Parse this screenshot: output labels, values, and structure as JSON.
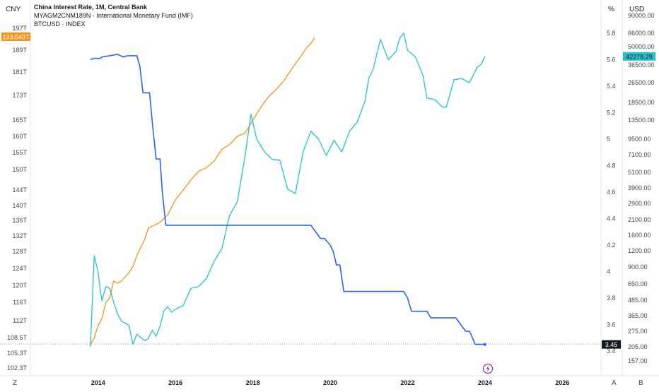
{
  "colors": {
    "interest_rate": "#2962ff",
    "money_supply": "#f7931a",
    "btc": "#22c3cf",
    "text": "#131722",
    "axis_text": "#434651",
    "divider": "#e0e3eb",
    "price_label_dark": "#131722",
    "lightning": "#9c27b0"
  },
  "header": {
    "currency_left": "CNY",
    "unit_mid": "%",
    "currency_right": "USD",
    "legend": [
      {
        "text": "China Interest Rate, 1M, Central Bank",
        "bold": true
      },
      {
        "text": "MYAGM2CNM189N · International Monetary Fund (IMF)",
        "bold": false
      },
      {
        "text": "BTCUSD · INDEX",
        "bold": false
      }
    ]
  },
  "footer": {
    "left_button": "Z",
    "a_button": "A",
    "b_button": "B"
  },
  "chart_data": {
    "type": "line",
    "x_range": [
      2012.25,
      2027.0
    ],
    "x_ticks": [
      "2014",
      "2016",
      "2018",
      "2020",
      "2022",
      "2024",
      "2026"
    ],
    "left_axis": {
      "unit": "CNY",
      "ticks": [
        "197T",
        "189T",
        "181T",
        "173T",
        "165T",
        "160T",
        "155T",
        "150T",
        "144T",
        "140T",
        "136T",
        "132T",
        "128T",
        "124T",
        "120T",
        "116T",
        "112T",
        "108.5T",
        "105.3T",
        "102.3T"
      ],
      "last_value_label": "193.549T"
    },
    "middle_axis": {
      "unit": "%",
      "ylim": [
        3.2,
        5.9
      ],
      "ticks": [
        "5.8",
        "5.6",
        "5.4",
        "5.2",
        "5",
        "4.8",
        "4.6",
        "4.4",
        "4.2",
        "4",
        "3.8",
        "3.6",
        "3.4"
      ],
      "last_value_label": "3.45"
    },
    "right_axis": {
      "unit": "USD",
      "scale": "log",
      "ticks": [
        "90000.00",
        "66000.00",
        "50000.00",
        "36500.00",
        "26500.00",
        "18500.00",
        "13500.00",
        "9500.00",
        "7100.00",
        "5100.00",
        "3900.00",
        "2900.00",
        "2100.00",
        "1600.00",
        "1200.00",
        "900.00",
        "650.00",
        "485.00",
        "365.00",
        "275.00",
        "205.00",
        "157.00"
      ],
      "last_value_label": "42278.29"
    },
    "series": [
      {
        "name": "China Interest Rate, 1M, Central Bank",
        "axis": "percent",
        "color": "#2962ff",
        "x": [
          2013.8,
          2013.9,
          2014.0,
          2014.05,
          2014.1,
          2014.3,
          2014.5,
          2014.58,
          2014.66,
          2014.75,
          2014.8,
          2014.9,
          2015.0,
          2015.08,
          2015.16,
          2015.25,
          2015.33,
          2015.41,
          2015.5,
          2015.6,
          2015.66,
          2015.75,
          2015.83,
          2016.0,
          2017.0,
          2018.0,
          2018.3,
          2019.0,
          2019.5,
          2019.6,
          2019.75,
          2019.85,
          2020.0,
          2020.08,
          2020.16,
          2020.25,
          2020.35,
          2020.5,
          2020.75,
          2021.0,
          2021.5,
          2021.9,
          2022.0,
          2022.1,
          2022.2,
          2022.5,
          2022.6,
          2022.75,
          2023.0,
          2023.25,
          2023.5,
          2023.6,
          2023.75,
          2023.85,
          2024.0
        ],
        "values": [
          5.6,
          5.61,
          5.61,
          5.61,
          5.62,
          5.63,
          5.64,
          5.63,
          5.62,
          5.63,
          5.63,
          5.63,
          5.63,
          5.55,
          5.35,
          5.35,
          5.35,
          5.1,
          4.85,
          4.85,
          4.6,
          4.35,
          4.35,
          4.35,
          4.35,
          4.35,
          4.35,
          4.35,
          4.35,
          4.31,
          4.25,
          4.25,
          4.2,
          4.15,
          4.05,
          4.05,
          3.85,
          3.85,
          3.85,
          3.85,
          3.85,
          3.85,
          3.8,
          3.7,
          3.7,
          3.7,
          3.65,
          3.65,
          3.65,
          3.65,
          3.55,
          3.55,
          3.45,
          3.45,
          3.45
        ]
      },
      {
        "name": "MYAGM2CNM189N · International Monetary Fund (IMF)",
        "axis": "left",
        "color": "#f7931a",
        "x": [
          2013.8,
          2013.9,
          2014.0,
          2014.1,
          2014.2,
          2014.3,
          2014.4,
          2014.5,
          2014.6,
          2014.7,
          2014.8,
          2014.9,
          2015.0,
          2015.1,
          2015.2,
          2015.3,
          2015.4,
          2015.5,
          2015.6,
          2015.7,
          2015.8,
          2015.9,
          2016.0,
          2016.2,
          2016.4,
          2016.6,
          2016.8,
          2017.0,
          2017.2,
          2017.4,
          2017.6,
          2017.8,
          2018.0,
          2018.2,
          2018.4,
          2018.6,
          2018.8,
          2019.0,
          2019.2,
          2019.4,
          2019.5,
          2019.6
        ],
        "values": [
          107.0,
          108.5,
          111.0,
          112.5,
          116.0,
          117.0,
          121.0,
          120.5,
          121.0,
          122.0,
          123.0,
          124.5,
          127.0,
          129.0,
          131.0,
          134.0,
          134.5,
          135.0,
          135.5,
          136.5,
          137.5,
          139.5,
          141.5,
          144.0,
          147.0,
          149.5,
          150.5,
          152.5,
          156.0,
          157.5,
          160.0,
          161.0,
          165.0,
          169.0,
          172.5,
          175.0,
          178.0,
          182.0,
          186.0,
          190.0,
          191.5,
          193.549
        ]
      },
      {
        "name": "BTCUSD · INDEX",
        "axis": "right",
        "color": "#22c3cf",
        "x": [
          2013.8,
          2013.9,
          2014.0,
          2014.05,
          2014.1,
          2014.2,
          2014.3,
          2014.4,
          2014.5,
          2014.6,
          2014.7,
          2014.8,
          2014.9,
          2015.0,
          2015.1,
          2015.2,
          2015.3,
          2015.4,
          2015.5,
          2015.6,
          2015.7,
          2015.8,
          2015.9,
          2016.0,
          2016.2,
          2016.4,
          2016.6,
          2016.8,
          2017.0,
          2017.2,
          2017.4,
          2017.6,
          2017.8,
          2017.95,
          2018.1,
          2018.3,
          2018.5,
          2018.7,
          2018.9,
          2019.1,
          2019.3,
          2019.5,
          2019.7,
          2019.9,
          2020.1,
          2020.3,
          2020.5,
          2020.7,
          2020.9,
          2021.0,
          2021.1,
          2021.3,
          2021.5,
          2021.7,
          2021.8,
          2021.9,
          2022.0,
          2022.2,
          2022.4,
          2022.5,
          2022.7,
          2022.9,
          2023.0,
          2023.2,
          2023.4,
          2023.6,
          2023.8,
          2023.9,
          2024.0
        ],
        "values": [
          205,
          1100,
          820,
          600,
          480,
          620,
          600,
          470,
          380,
          330,
          320,
          305,
          215,
          260,
          245,
          230,
          240,
          280,
          250,
          300,
          400,
          430,
          390,
          410,
          440,
          600,
          620,
          720,
          1000,
          1250,
          2300,
          3000,
          7000,
          15000,
          9500,
          7500,
          6500,
          6400,
          3800,
          3500,
          7500,
          11000,
          9500,
          7000,
          9300,
          7500,
          11000,
          13000,
          19000,
          29000,
          33000,
          58000,
          40000,
          46000,
          60000,
          66000,
          47000,
          42000,
          30000,
          20000,
          19500,
          17000,
          17000,
          28000,
          28500,
          26500,
          35000,
          37000,
          42278.29
        ]
      }
    ]
  }
}
